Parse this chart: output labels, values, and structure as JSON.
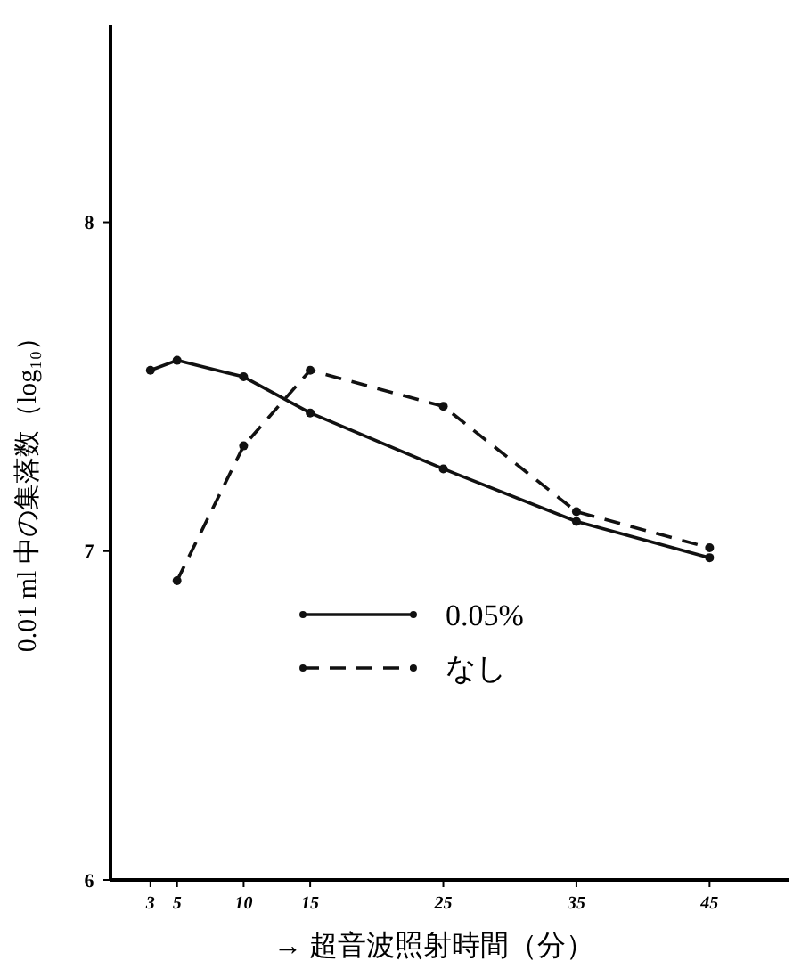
{
  "chart_data": {
    "type": "line",
    "xlabel": "→ 超音波照射時間（分）",
    "ylabel": "0.01 ml 中の集落数（log₁₀）",
    "x": [
      3,
      5,
      10,
      15,
      25,
      35,
      45
    ],
    "series": [
      {
        "name": "0.05%",
        "color": "#111111",
        "line_style": "solid",
        "values": [
          7.55,
          7.58,
          7.53,
          7.42,
          7.25,
          7.09,
          6.98
        ]
      },
      {
        "name": "なし",
        "color": "#111111",
        "line_style": "dashed",
        "x": [
          5,
          10,
          15,
          25,
          35,
          45
        ],
        "values": [
          6.91,
          7.32,
          7.55,
          7.44,
          7.12,
          7.01
        ]
      }
    ],
    "xlim": [
      0,
      51
    ],
    "xticks": [
      3,
      5,
      10,
      15,
      25,
      35,
      45
    ],
    "ylim": [
      6,
      8.6
    ],
    "yticks": [
      6,
      7,
      8
    ],
    "marker": "circle",
    "grid": false,
    "legend": "center"
  }
}
